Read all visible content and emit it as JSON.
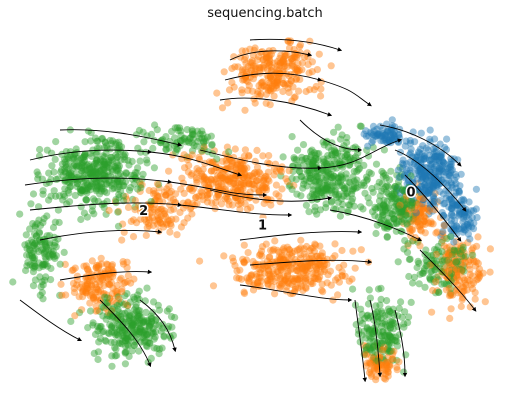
{
  "chart_data": {
    "type": "scatter",
    "title": "sequencing.batch",
    "xlabel": "",
    "ylabel": "",
    "grid": false,
    "legend": "none",
    "overlay": "velocity streamlines",
    "point_alpha": 0.45,
    "series": [
      {
        "name": "0",
        "color": "#1f77b4"
      },
      {
        "name": "1",
        "color": "#ff7f0e"
      },
      {
        "name": "2",
        "color": "#2ca02c"
      }
    ],
    "cluster_labels": [
      {
        "text": "0",
        "x": 0.81,
        "y": 0.56
      },
      {
        "text": "1",
        "x": 0.51,
        "y": 0.47
      },
      {
        "text": "2",
        "x": 0.27,
        "y": 0.51
      }
    ]
  }
}
